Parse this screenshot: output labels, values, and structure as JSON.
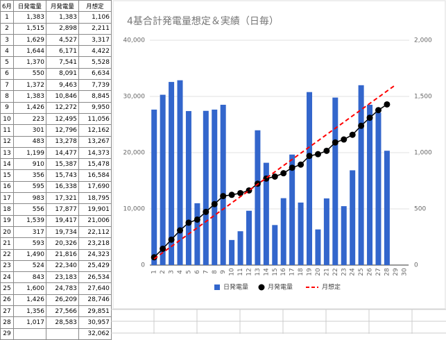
{
  "table": {
    "header": [
      "6月",
      "日発電量",
      "月発電量",
      "月想定"
    ],
    "rows": [
      [
        "1",
        "1,383",
        "1,383",
        "1,106"
      ],
      [
        "2",
        "1,515",
        "2,898",
        "2,211"
      ],
      [
        "3",
        "1,629",
        "4,527",
        "3,317"
      ],
      [
        "4",
        "1,644",
        "6,171",
        "4,422"
      ],
      [
        "5",
        "1,370",
        "7,541",
        "5,528"
      ],
      [
        "6",
        "550",
        "8,091",
        "6,634"
      ],
      [
        "7",
        "1,372",
        "9,463",
        "7,739"
      ],
      [
        "8",
        "1,383",
        "10,846",
        "8,845"
      ],
      [
        "9",
        "1,426",
        "12,272",
        "9,950"
      ],
      [
        "10",
        "223",
        "12,495",
        "11,056"
      ],
      [
        "11",
        "301",
        "12,796",
        "12,162"
      ],
      [
        "12",
        "483",
        "13,278",
        "13,267"
      ],
      [
        "13",
        "1,199",
        "14,477",
        "14,373"
      ],
      [
        "14",
        "910",
        "15,387",
        "15,478"
      ],
      [
        "15",
        "356",
        "15,743",
        "16,584"
      ],
      [
        "16",
        "595",
        "16,338",
        "17,690"
      ],
      [
        "17",
        "983",
        "17,321",
        "18,795"
      ],
      [
        "18",
        "556",
        "17,877",
        "19,901"
      ],
      [
        "19",
        "1,539",
        "19,417",
        "21,006"
      ],
      [
        "20",
        "317",
        "19,734",
        "22,112"
      ],
      [
        "21",
        "593",
        "20,326",
        "23,218"
      ],
      [
        "22",
        "1,490",
        "21,816",
        "24,323"
      ],
      [
        "23",
        "524",
        "22,340",
        "25,429"
      ],
      [
        "24",
        "843",
        "23,183",
        "26,534"
      ],
      [
        "25",
        "1,600",
        "24,783",
        "27,640"
      ],
      [
        "26",
        "1,426",
        "26,209",
        "28,746"
      ],
      [
        "27",
        "1,356",
        "27,566",
        "29,851"
      ],
      [
        "28",
        "1,017",
        "28,583",
        "30,957"
      ],
      [
        "29",
        null,
        null,
        "32,062"
      ]
    ]
  },
  "chart_data": {
    "type": "combo",
    "title": "4基合計発電量想定＆実績（日毎）",
    "categories": [
      1,
      2,
      3,
      4,
      5,
      6,
      7,
      8,
      9,
      10,
      11,
      12,
      13,
      14,
      15,
      16,
      17,
      18,
      19,
      20,
      21,
      22,
      23,
      24,
      25,
      26,
      27,
      28,
      29,
      30
    ],
    "series": [
      {
        "name": "日発電量",
        "type": "bar",
        "axis": "y2",
        "color": "#3366cc",
        "values": [
          1383,
          1515,
          1629,
          1644,
          1370,
          550,
          1372,
          1383,
          1426,
          223,
          301,
          483,
          1199,
          910,
          356,
          595,
          983,
          556,
          1539,
          317,
          593,
          1490,
          524,
          843,
          1600,
          1426,
          1356,
          1017,
          null,
          null
        ]
      },
      {
        "name": "月発電量",
        "type": "line",
        "color": "#000000",
        "markers": true,
        "values": [
          1383,
          2898,
          4527,
          6171,
          7541,
          8091,
          9463,
          10846,
          12272,
          12495,
          12796,
          13278,
          14477,
          15387,
          15743,
          16338,
          17321,
          17877,
          19417,
          19734,
          20326,
          21816,
          22340,
          23183,
          24783,
          26209,
          27566,
          28583,
          null,
          null
        ]
      },
      {
        "name": "月想定",
        "type": "line",
        "color": "#ff0000",
        "dashed": true,
        "values": [
          1106,
          2211,
          3317,
          4422,
          5528,
          6634,
          7739,
          8845,
          9950,
          11056,
          12162,
          13267,
          14373,
          15478,
          16584,
          17690,
          18795,
          19901,
          21006,
          22112,
          23218,
          24323,
          25429,
          26534,
          27640,
          28746,
          29851,
          30957,
          32062,
          null
        ]
      }
    ],
    "ylim": [
      0,
      40000
    ],
    "yticks": [
      0,
      {
        "value": 10000,
        "label": "10,000"
      },
      {
        "value": 20000,
        "label": "20,000"
      },
      {
        "value": 30000,
        "label": "30,000"
      },
      {
        "value": 40000,
        "label": "40,000"
      }
    ],
    "y2lim": [
      0,
      2000
    ],
    "y2ticks": [
      0,
      500,
      {
        "value": 1000,
        "label": "1,000"
      },
      {
        "value": 1500,
        "label": "1,500"
      },
      {
        "value": 2000,
        "label": "2,000"
      }
    ],
    "grid": true
  }
}
